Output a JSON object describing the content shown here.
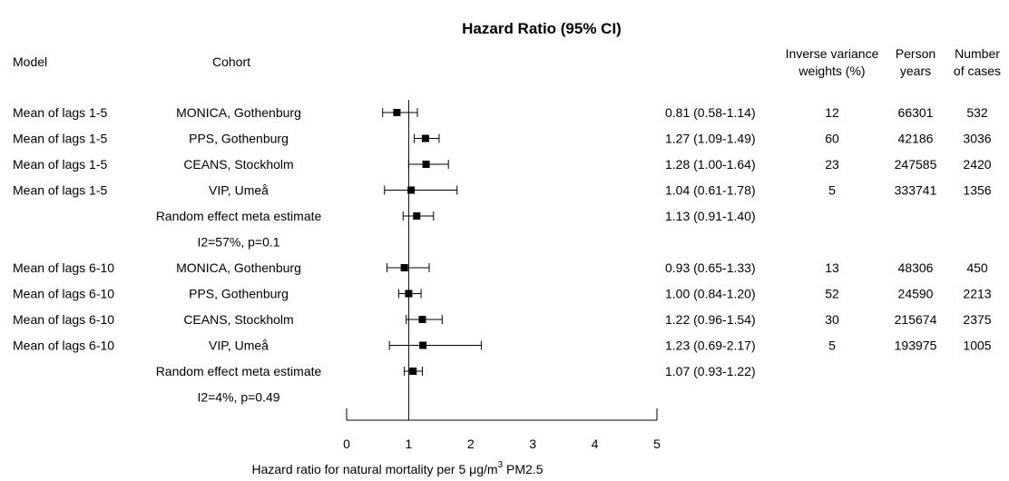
{
  "chart_data": {
    "type": "forest",
    "title": "Hazard Ratio (95% CI)",
    "columns": {
      "model": "Model",
      "cohort": "Cohort",
      "weights": [
        "Inverse variance",
        "weights (%)"
      ],
      "person_years": [
        "Person",
        "years"
      ],
      "cases": [
        "Number",
        "of cases"
      ]
    },
    "xlabel": "Hazard ratio for natural mortality per 5 μg/m",
    "xlabel_sup": "3",
    "xlabel_suffix": " PM2.5",
    "xlim": [
      0,
      5
    ],
    "xticks": [
      "0",
      "1",
      "2",
      "3",
      "4",
      "5"
    ],
    "reference_line": 1,
    "rows": [
      {
        "model": "Mean of lags 1-5",
        "cohort": "MONICA, Gothenburg",
        "hr": 0.81,
        "lo": 0.58,
        "hi": 1.14,
        "ci_text": "0.81 (0.58-1.14)",
        "weight": "12",
        "person_years": "66301",
        "cases": "532"
      },
      {
        "model": "Mean of lags 1-5",
        "cohort": "PPS, Gothenburg",
        "hr": 1.27,
        "lo": 1.09,
        "hi": 1.49,
        "ci_text": "1.27 (1.09-1.49)",
        "weight": "60",
        "person_years": "42186",
        "cases": "3036"
      },
      {
        "model": "Mean of lags 1-5",
        "cohort": "CEANS, Stockholm",
        "hr": 1.28,
        "lo": 1.0,
        "hi": 1.64,
        "ci_text": "1.28 (1.00-1.64)",
        "weight": "23",
        "person_years": "247585",
        "cases": "2420"
      },
      {
        "model": "Mean of lags 1-5",
        "cohort": "VIP, Umeå",
        "hr": 1.04,
        "lo": 0.61,
        "hi": 1.78,
        "ci_text": "1.04 (0.61-1.78)",
        "weight": "5",
        "person_years": "333741",
        "cases": "1356"
      },
      {
        "model": "",
        "cohort": "Random effect meta estimate",
        "hr": 1.13,
        "lo": 0.91,
        "hi": 1.4,
        "ci_text": "1.13 (0.91-1.40)",
        "weight": "",
        "person_years": "",
        "cases": ""
      },
      {
        "model": "",
        "cohort": "I2=57%, p=0.1",
        "hr": null,
        "lo": null,
        "hi": null,
        "ci_text": "",
        "weight": "",
        "person_years": "",
        "cases": ""
      },
      {
        "model": "Mean of lags 6-10",
        "cohort": "MONICA, Gothenburg",
        "hr": 0.93,
        "lo": 0.65,
        "hi": 1.33,
        "ci_text": "0.93 (0.65-1.33)",
        "weight": "13",
        "person_years": "48306",
        "cases": "450"
      },
      {
        "model": "Mean of lags 6-10",
        "cohort": "PPS, Gothenburg",
        "hr": 1.0,
        "lo": 0.84,
        "hi": 1.2,
        "ci_text": "1.00 (0.84-1.20)",
        "weight": "52",
        "person_years": "24590",
        "cases": "2213"
      },
      {
        "model": "Mean of lags 6-10",
        "cohort": "CEANS, Stockholm",
        "hr": 1.22,
        "lo": 0.96,
        "hi": 1.54,
        "ci_text": "1.22 (0.96-1.54)",
        "weight": "30",
        "person_years": "215674",
        "cases": "2375"
      },
      {
        "model": "Mean of lags 6-10",
        "cohort": "VIP, Umeå",
        "hr": 1.23,
        "lo": 0.69,
        "hi": 2.17,
        "ci_text": "1.23 (0.69-2.17)",
        "weight": "5",
        "person_years": "193975",
        "cases": "1005"
      },
      {
        "model": "",
        "cohort": "Random effect meta estimate",
        "hr": 1.07,
        "lo": 0.93,
        "hi": 1.22,
        "ci_text": "1.07 (0.93-1.22)",
        "weight": "",
        "person_years": "",
        "cases": ""
      },
      {
        "model": "",
        "cohort": "I2=4%, p=0.49",
        "hr": null,
        "lo": null,
        "hi": null,
        "ci_text": "",
        "weight": "",
        "person_years": "",
        "cases": ""
      }
    ]
  }
}
